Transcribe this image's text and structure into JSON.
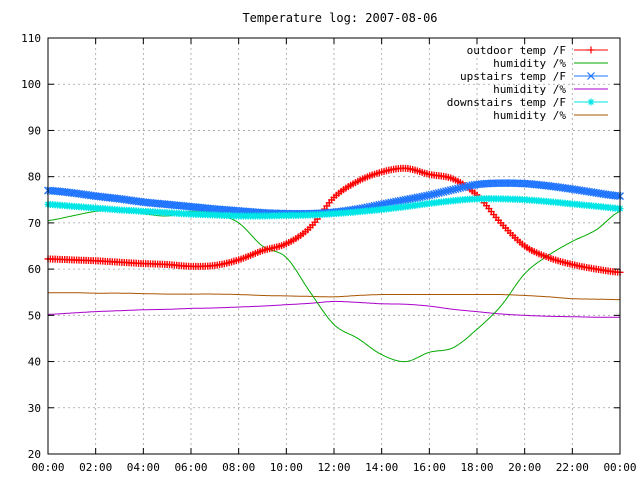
{
  "chart_data": {
    "type": "line",
    "title": "Temperature log: 2007-08-06",
    "xlabel": "",
    "ylabel": "",
    "grid": true,
    "legend_position": "top-right",
    "xlim": [
      0,
      24
    ],
    "ylim": [
      20,
      110
    ],
    "x_ticks": [
      "00:00",
      "02:00",
      "04:00",
      "06:00",
      "08:00",
      "10:00",
      "12:00",
      "14:00",
      "16:00",
      "18:00",
      "20:00",
      "22:00",
      "00:00"
    ],
    "y_ticks": [
      "20",
      "30",
      "40",
      "50",
      "60",
      "70",
      "80",
      "90",
      "100",
      "110"
    ],
    "x_hours": [
      0,
      1,
      2,
      3,
      4,
      5,
      6,
      7,
      8,
      9,
      10,
      11,
      12,
      13,
      14,
      15,
      16,
      17,
      18,
      19,
      20,
      21,
      22,
      23,
      24
    ],
    "series": [
      {
        "name": "outdoor temp /F",
        "color": "#ff0000",
        "marker": "plus",
        "values": [
          62.2,
          62.0,
          61.8,
          61.5,
          61.2,
          61.0,
          60.6,
          60.8,
          62.0,
          64.0,
          65.5,
          69.0,
          75.5,
          79.0,
          81.0,
          81.8,
          80.5,
          79.5,
          76.0,
          70.0,
          65.0,
          62.5,
          61.0,
          60.0,
          59.3
        ]
      },
      {
        "name": "humidity /%",
        "color": "#00aa00",
        "marker": "line",
        "values": [
          70.5,
          71.5,
          72.5,
          72.8,
          72.0,
          71.5,
          72.5,
          72.0,
          70.0,
          65.0,
          62.5,
          55.0,
          48.0,
          45.0,
          41.5,
          40.0,
          42.0,
          43.0,
          47.0,
          52.0,
          59.0,
          63.0,
          66.0,
          68.5,
          72.5
        ]
      },
      {
        "name": "upstairs temp /F",
        "color": "#1e74ff",
        "marker": "cross",
        "values": [
          77.0,
          76.5,
          75.8,
          75.2,
          74.5,
          74.0,
          73.5,
          73.0,
          72.6,
          72.2,
          72.0,
          72.0,
          72.3,
          73.0,
          74.0,
          75.0,
          76.0,
          77.2,
          78.3,
          78.6,
          78.5,
          78.0,
          77.3,
          76.5,
          75.8
        ]
      },
      {
        "name": "humidity /%",
        "color": "#aa00cc",
        "marker": "line",
        "values": [
          50.2,
          50.5,
          50.8,
          51.0,
          51.2,
          51.3,
          51.5,
          51.6,
          51.8,
          52.0,
          52.3,
          52.6,
          53.0,
          52.8,
          52.5,
          52.4,
          52.0,
          51.3,
          50.8,
          50.3,
          50.0,
          49.8,
          49.7,
          49.6,
          49.6
        ]
      },
      {
        "name": "downstairs temp /F",
        "color": "#00e6e6",
        "marker": "star",
        "values": [
          74.0,
          73.6,
          73.2,
          72.8,
          72.5,
          72.2,
          71.9,
          71.7,
          71.5,
          71.5,
          71.6,
          71.7,
          72.0,
          72.4,
          72.9,
          73.5,
          74.2,
          74.8,
          75.2,
          75.2,
          75.0,
          74.6,
          74.1,
          73.6,
          73.1
        ]
      },
      {
        "name": "humidity /%",
        "color": "#aa5500",
        "marker": "line",
        "values": [
          54.9,
          54.9,
          54.8,
          54.8,
          54.7,
          54.6,
          54.6,
          54.6,
          54.5,
          54.3,
          54.2,
          54.1,
          54.0,
          54.3,
          54.5,
          54.5,
          54.5,
          54.5,
          54.5,
          54.5,
          54.3,
          54.0,
          53.6,
          53.5,
          53.4
        ]
      }
    ]
  }
}
